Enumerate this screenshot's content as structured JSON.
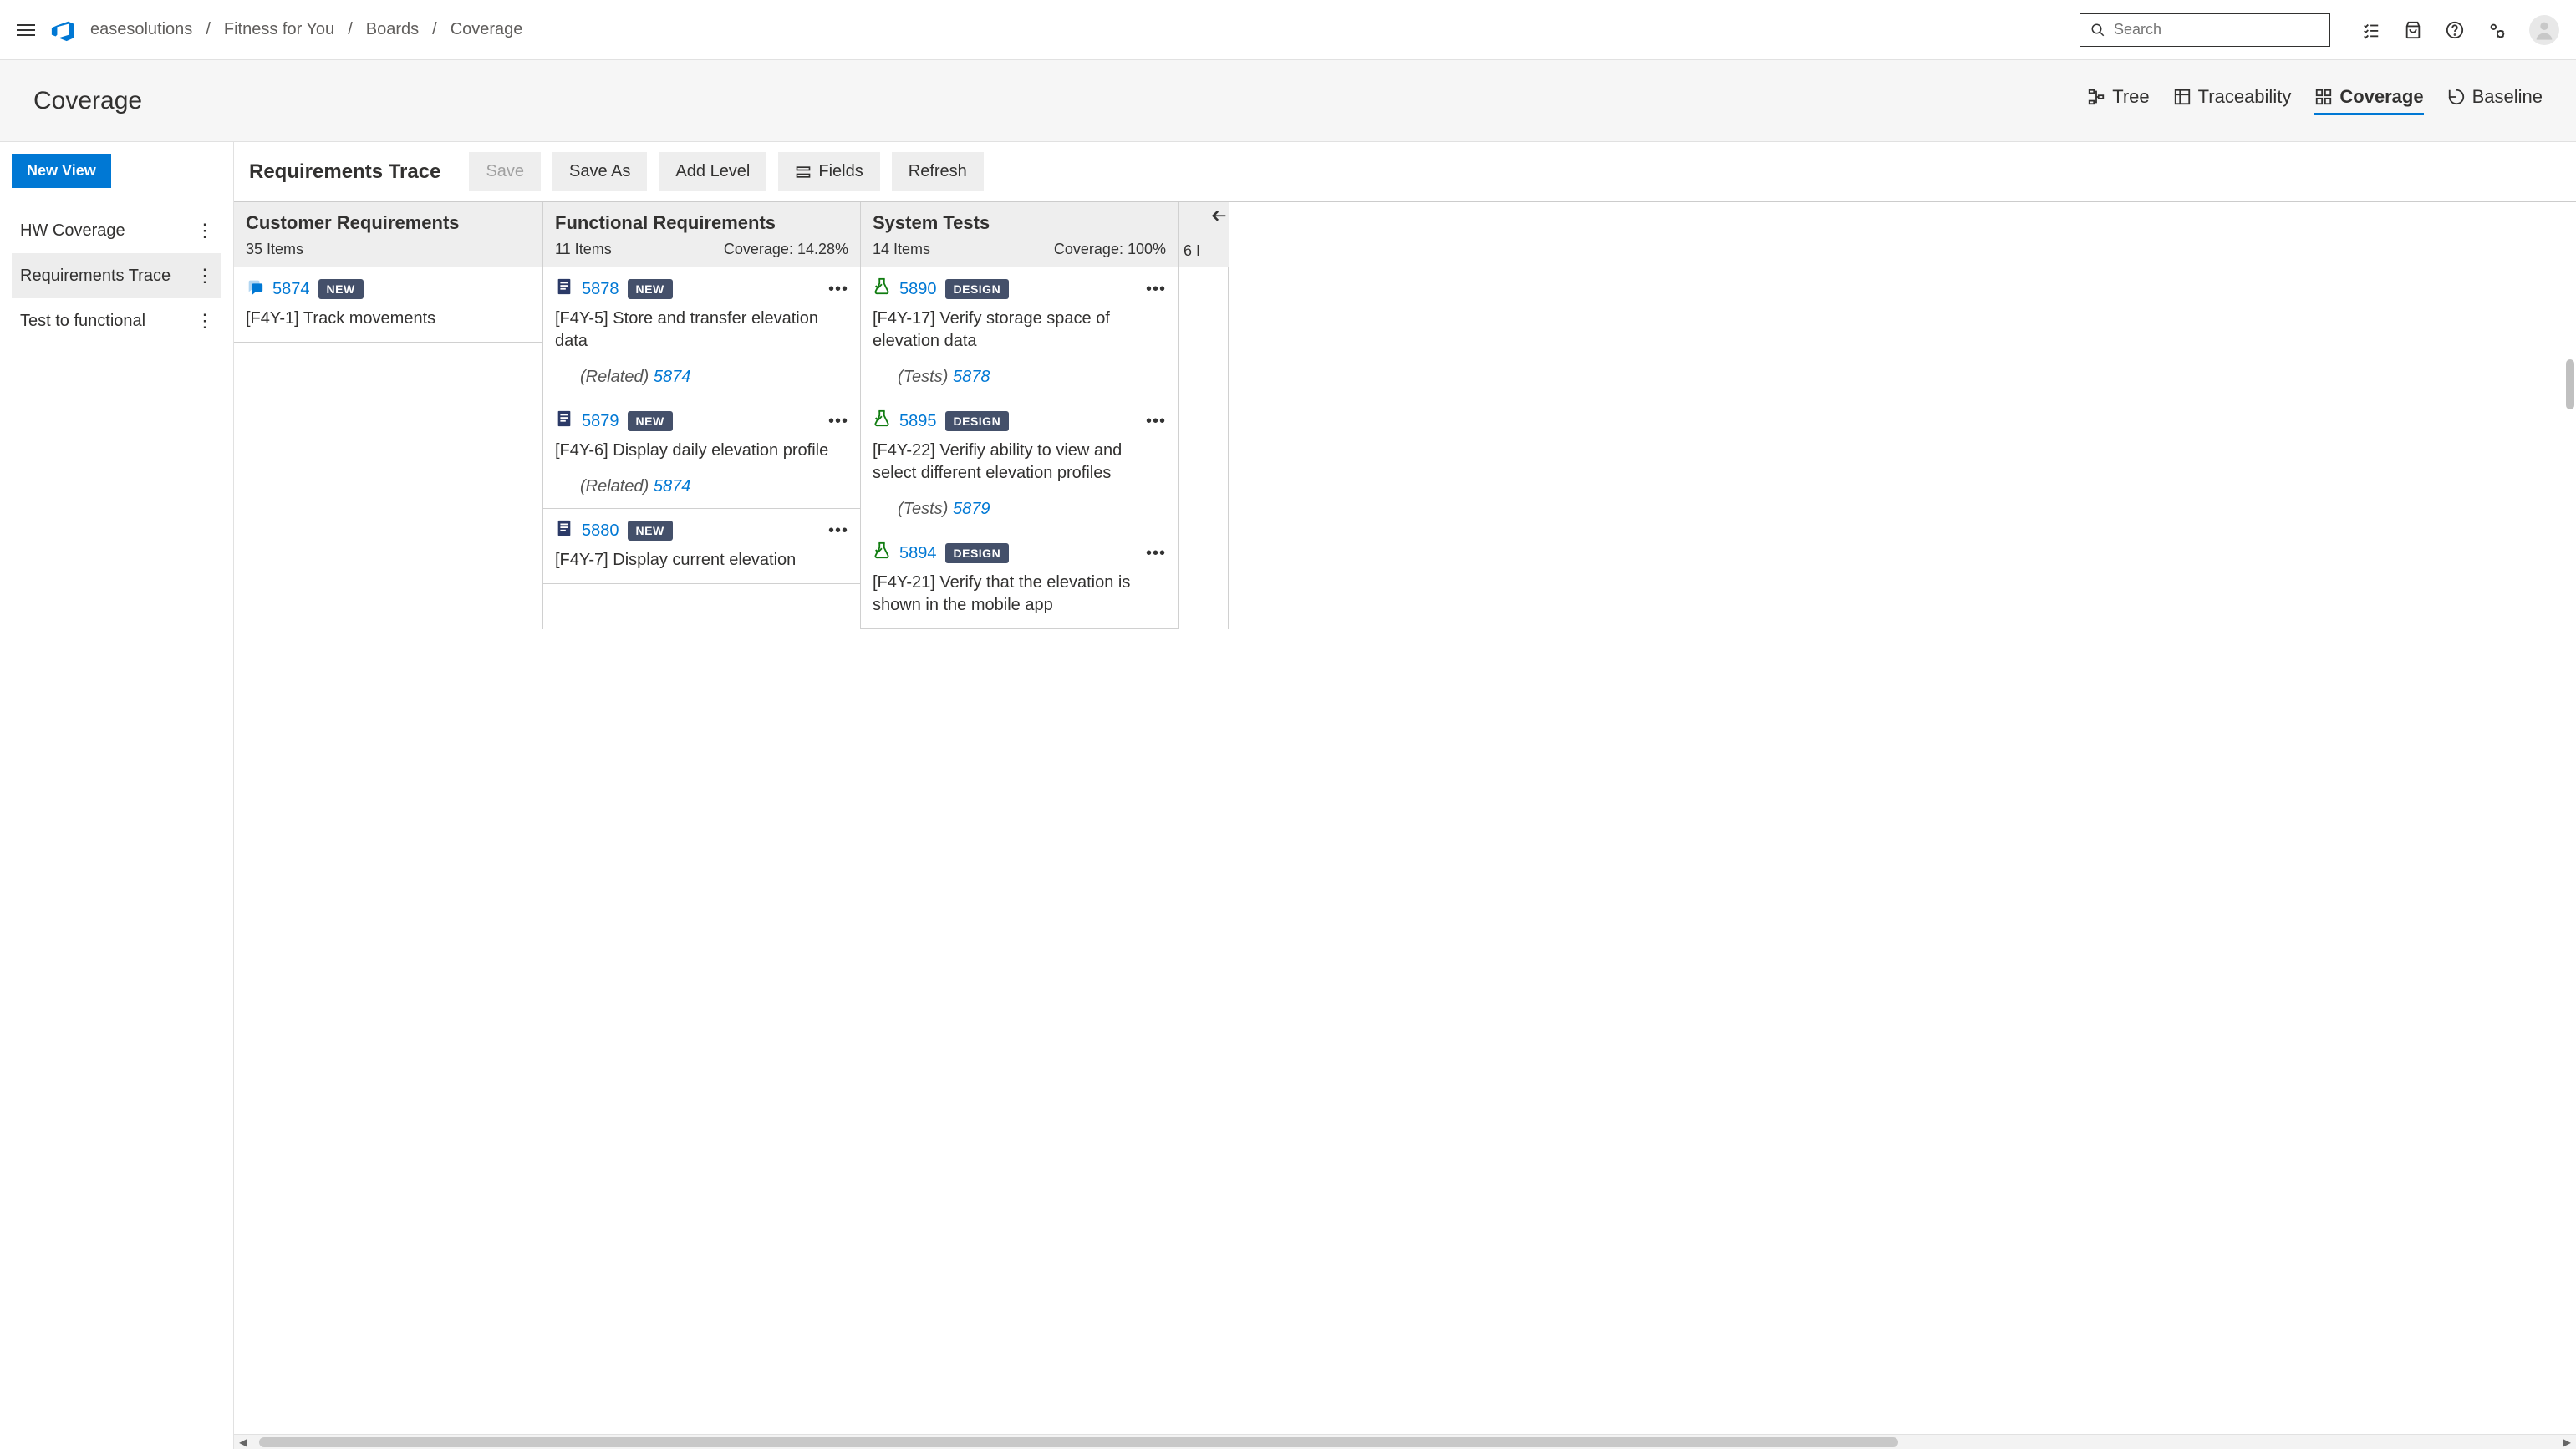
{
  "topbar": {
    "breadcrumb": [
      "easesolutions",
      "Fitness for You",
      "Boards",
      "Coverage"
    ],
    "search_placeholder": "Search"
  },
  "subheader": {
    "title": "Coverage",
    "tabs": [
      {
        "label": "Tree",
        "active": false
      },
      {
        "label": "Traceability",
        "active": false
      },
      {
        "label": "Coverage",
        "active": true
      },
      {
        "label": "Baseline",
        "active": false
      }
    ]
  },
  "sidebar": {
    "new_view_label": "New View",
    "items": [
      {
        "label": "HW Coverage",
        "active": false
      },
      {
        "label": "Requirements Trace",
        "active": true
      },
      {
        "label": "Test to functional",
        "active": false
      }
    ]
  },
  "toolbar": {
    "title": "Requirements Trace",
    "save_label": "Save",
    "save_as_label": "Save As",
    "add_level_label": "Add Level",
    "fields_label": "Fields",
    "refresh_label": "Refresh"
  },
  "columns": [
    {
      "title": "Customer Requirements",
      "items_text": "35 Items",
      "coverage_text": "",
      "cards": [
        {
          "icon": "chat",
          "id": "5874",
          "badge": "NEW",
          "title": "[F4Y-1] Track movements",
          "related_label": "",
          "related_id": "",
          "show_more": false
        }
      ]
    },
    {
      "title": "Functional Requirements",
      "items_text": "11 Items",
      "coverage_text": "Coverage: 14.28%",
      "cards": [
        {
          "icon": "doc",
          "id": "5878",
          "badge": "NEW",
          "title": "[F4Y-5] Store and transfer elevation data",
          "related_label": "(Related)",
          "related_id": "5874",
          "show_more": true
        },
        {
          "icon": "doc",
          "id": "5879",
          "badge": "NEW",
          "title": "[F4Y-6] Display daily elevation profile",
          "related_label": "(Related)",
          "related_id": "5874",
          "show_more": true
        },
        {
          "icon": "doc",
          "id": "5880",
          "badge": "NEW",
          "title": "[F4Y-7] Display current elevation",
          "related_label": "",
          "related_id": "",
          "show_more": true
        }
      ]
    },
    {
      "title": "System Tests",
      "items_text": "14 Items",
      "coverage_text": "Coverage: 100%",
      "cards": [
        {
          "icon": "test",
          "id": "5890",
          "badge": "DESIGN",
          "title": "[F4Y-17] Verify storage space of elevation data",
          "related_label": "(Tests)",
          "related_id": "5878",
          "show_more": true
        },
        {
          "icon": "test",
          "id": "5895",
          "badge": "DESIGN",
          "title": "[F4Y-22] Verifiy ability to view and select different elevation profiles",
          "related_label": "(Tests)",
          "related_id": "5879",
          "show_more": true
        },
        {
          "icon": "test",
          "id": "5894",
          "badge": "DESIGN",
          "title": "[F4Y-21] Verify that the elevation is shown in the mobile app",
          "related_label": "",
          "related_id": "",
          "show_more": true
        }
      ]
    }
  ],
  "partial_column": {
    "items_text": "6 I"
  },
  "colors": {
    "primary": "#0078d4",
    "badge_bg": "#44506a",
    "grey_bg": "#eeeeee"
  }
}
